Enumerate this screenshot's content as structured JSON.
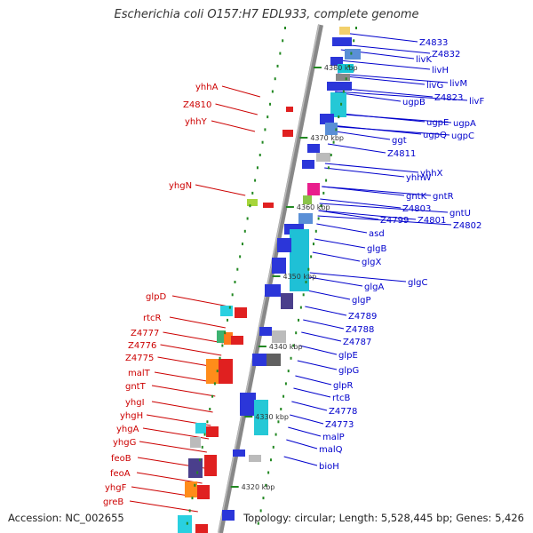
{
  "title": "Escherichia coli O157:H7 EDL933, complete genome",
  "footer": {
    "accession": "Accession: NC_002655",
    "stats": "Topology: circular; Length: 5,528,445 bp; Genes: 5,426"
  },
  "colors": {
    "forward_label": "#0000cc",
    "reverse_label": "#cc0000",
    "backbone": "#888888",
    "tick": "#228822"
  },
  "kbp_marks": [
    "4380 kbp",
    "4370 kbp",
    "4360 kbp",
    "4350 kbp",
    "4340 kbp",
    "4330 kbp",
    "4320 kbp"
  ],
  "right_labels": [
    "Z4833",
    "Z4832",
    "livK",
    "livH",
    "livG",
    "livM",
    "Z4823",
    "livF",
    "ugpB",
    "ugpE",
    "ugpA",
    "ugpQ",
    "ugpC",
    "ggt",
    "Z4811",
    "yhhX",
    "yhhW",
    "gntK",
    "gntR",
    "Z4803",
    "gntU",
    "Z4799",
    "Z4801",
    "Z4802",
    "asd",
    "glgB",
    "glgX",
    "glgC",
    "glgA",
    "glgP",
    "Z4789",
    "Z4788",
    "Z4787",
    "glpE",
    "glpG",
    "glpR",
    "rtcB",
    "Z4778",
    "Z4773",
    "malP",
    "malQ",
    "bioH"
  ],
  "left_labels": [
    "yhhA",
    "Z4810",
    "yhhY",
    "yhgN",
    "glpD",
    "rtcR",
    "Z4777",
    "Z4776",
    "Z4775",
    "malT",
    "gntT",
    "yhgI",
    "yhgH",
    "yhgA",
    "yhgG",
    "feoB",
    "feoA",
    "yhgF",
    "greB"
  ]
}
